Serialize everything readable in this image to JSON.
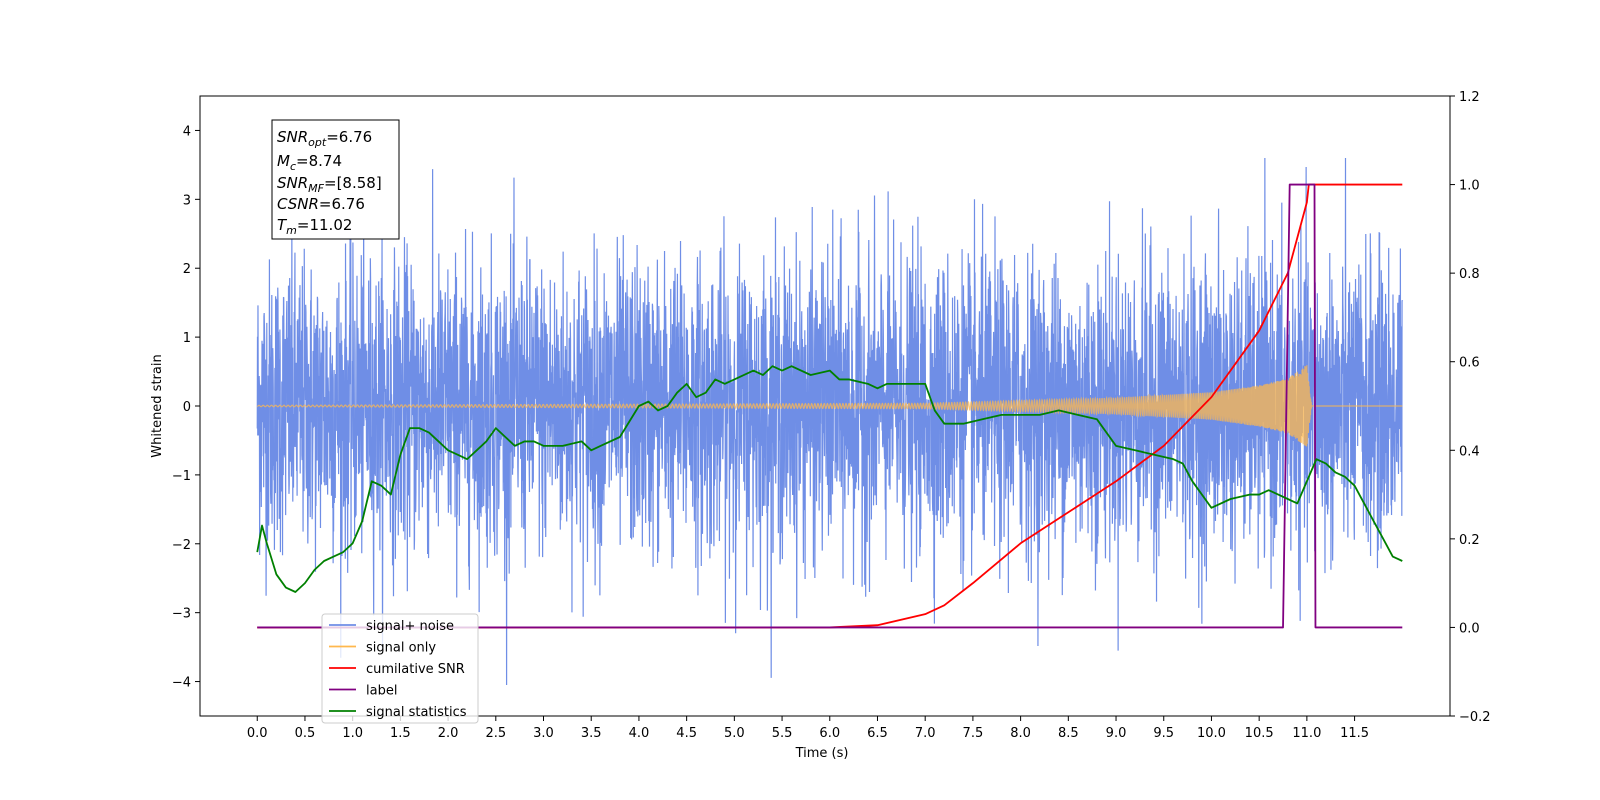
{
  "chart_data": {
    "type": "line",
    "title": "",
    "xlabel": "Time (s)",
    "ylabel": "Whitened strain",
    "y2label": "",
    "xlim": [
      -0.6,
      12.5
    ],
    "ylim": [
      -4.5,
      4.5
    ],
    "y2lim": [
      -0.2,
      1.2
    ],
    "xticks": [
      "0.0",
      "0.5",
      "1.0",
      "1.5",
      "2.0",
      "2.5",
      "3.0",
      "3.5",
      "4.0",
      "4.5",
      "5.0",
      "5.5",
      "6.0",
      "6.5",
      "7.0",
      "7.5",
      "8.0",
      "8.5",
      "9.0",
      "9.5",
      "10.0",
      "10.5",
      "11.0",
      "11.5"
    ],
    "yticks": [
      "4",
      "3",
      "2",
      "1",
      "0",
      "−1",
      "−2",
      "−3",
      "−4"
    ],
    "y2ticks": [
      "1.2",
      "1.0",
      "0.8",
      "0.6",
      "0.4",
      "0.2",
      "0.0",
      "−0.2"
    ],
    "legend": {
      "placement": "lower-left",
      "entries": [
        {
          "label": "signal+ noise",
          "color": "#6f8ee6"
        },
        {
          "label": "signal only",
          "color": "#ffb84d"
        },
        {
          "label": "cumilative SNR",
          "color": "#ff0000"
        },
        {
          "label": "label",
          "color": "#800080"
        },
        {
          "label": "signal statistics",
          "color": "#008000"
        }
      ]
    },
    "info_box": {
      "snr_opt": {
        "sym": "SNR",
        "sub": "opt",
        "val": "=6.76"
      },
      "mc": {
        "sym": "M",
        "sub": "c",
        "val": "=8.74"
      },
      "snr_mf": {
        "sym": "SNR",
        "sub": "MF",
        "val": "=[8.58]"
      },
      "csnr": {
        "sym": "CSNR",
        "sub": "",
        "val": "=6.76"
      },
      "tm": {
        "sym": "T",
        "sub": "m",
        "val": "=11.02"
      }
    },
    "series": [
      {
        "name": "signal+ noise",
        "axis": "left",
        "color": "#6f8ee6",
        "x_range": [
          0.0,
          12.0
        ],
        "noise_std": 1.0
      },
      {
        "name": "signal only",
        "axis": "left",
        "color": "#ffb84d",
        "merger_time": 11.02,
        "amplitude_envelope": [
          [
            0,
            0.01
          ],
          [
            7,
            0.04
          ],
          [
            8,
            0.08
          ],
          [
            9,
            0.12
          ],
          [
            10,
            0.2
          ],
          [
            10.5,
            0.3
          ],
          [
            10.8,
            0.4
          ],
          [
            11.0,
            0.6
          ],
          [
            11.05,
            0.0
          ],
          [
            12,
            0.0
          ]
        ]
      },
      {
        "name": "cumilative SNR",
        "axis": "right",
        "color": "#ff0000",
        "x": [
          0,
          6.0,
          6.5,
          7.0,
          7.2,
          7.5,
          8.0,
          8.5,
          9.0,
          9.5,
          10.0,
          10.5,
          10.8,
          11.0,
          11.02,
          12.0
        ],
        "y": [
          0,
          0,
          0.005,
          0.03,
          0.05,
          0.1,
          0.19,
          0.26,
          0.33,
          0.41,
          0.52,
          0.67,
          0.8,
          0.96,
          1.0,
          1.0
        ]
      },
      {
        "name": "label",
        "axis": "right",
        "color": "#800080",
        "x": [
          0,
          10.75,
          10.82,
          10.83,
          11.02,
          11.08,
          11.09,
          12.0
        ],
        "y": [
          0,
          0,
          1.0,
          1.0,
          1.0,
          1.0,
          0,
          0
        ]
      },
      {
        "name": "signal statistics",
        "axis": "right",
        "color": "#008000",
        "x": [
          0,
          0.05,
          0.1,
          0.2,
          0.3,
          0.4,
          0.5,
          0.6,
          0.7,
          0.8,
          0.9,
          1.0,
          1.1,
          1.2,
          1.3,
          1.4,
          1.5,
          1.6,
          1.7,
          1.8,
          1.9,
          2.0,
          2.1,
          2.2,
          2.3,
          2.4,
          2.5,
          2.6,
          2.7,
          2.8,
          2.9,
          3.0,
          3.2,
          3.4,
          3.5,
          3.6,
          3.8,
          4.0,
          4.1,
          4.2,
          4.3,
          4.4,
          4.5,
          4.6,
          4.7,
          4.8,
          4.9,
          5.0,
          5.2,
          5.3,
          5.4,
          5.5,
          5.6,
          5.8,
          6.0,
          6.1,
          6.2,
          6.4,
          6.5,
          6.6,
          6.8,
          7.0,
          7.1,
          7.2,
          7.4,
          7.6,
          7.8,
          8.0,
          8.2,
          8.4,
          8.6,
          8.8,
          9.0,
          9.2,
          9.4,
          9.6,
          9.7,
          9.8,
          9.9,
          10.0,
          10.2,
          10.4,
          10.5,
          10.6,
          10.7,
          10.8,
          10.9,
          11.0,
          11.1,
          11.2,
          11.3,
          11.4,
          11.5,
          11.6,
          11.7,
          11.8,
          11.9,
          12.0
        ],
        "y": [
          0.17,
          0.23,
          0.19,
          0.12,
          0.09,
          0.08,
          0.1,
          0.13,
          0.15,
          0.16,
          0.17,
          0.19,
          0.24,
          0.33,
          0.32,
          0.3,
          0.39,
          0.45,
          0.45,
          0.44,
          0.42,
          0.4,
          0.39,
          0.38,
          0.4,
          0.42,
          0.45,
          0.43,
          0.41,
          0.42,
          0.42,
          0.41,
          0.41,
          0.42,
          0.4,
          0.41,
          0.43,
          0.5,
          0.51,
          0.49,
          0.5,
          0.53,
          0.55,
          0.52,
          0.53,
          0.56,
          0.55,
          0.56,
          0.58,
          0.57,
          0.59,
          0.58,
          0.59,
          0.57,
          0.58,
          0.56,
          0.56,
          0.55,
          0.54,
          0.55,
          0.55,
          0.55,
          0.49,
          0.46,
          0.46,
          0.47,
          0.48,
          0.48,
          0.48,
          0.49,
          0.48,
          0.47,
          0.41,
          0.4,
          0.39,
          0.38,
          0.37,
          0.33,
          0.3,
          0.27,
          0.29,
          0.3,
          0.3,
          0.31,
          0.3,
          0.29,
          0.28,
          0.33,
          0.38,
          0.37,
          0.35,
          0.34,
          0.32,
          0.28,
          0.24,
          0.2,
          0.16,
          0.15
        ]
      }
    ]
  }
}
